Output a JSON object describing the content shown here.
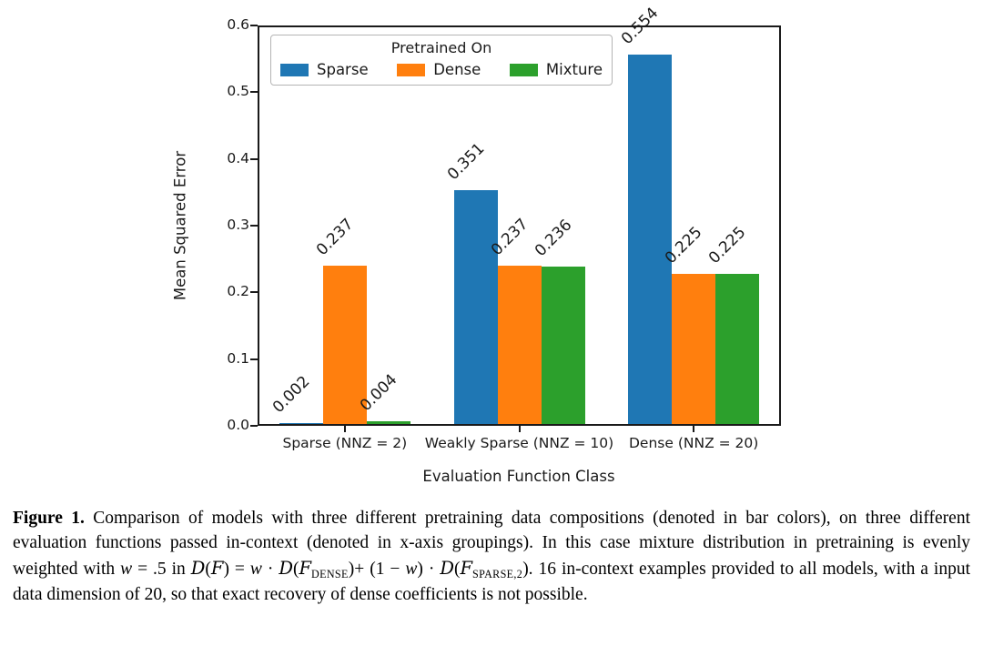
{
  "chart_data": {
    "type": "bar",
    "title": "",
    "xlabel": "Evaluation Function Class",
    "ylabel": "Mean Squared Error",
    "ylim": [
      0,
      0.6
    ],
    "yticks": [
      0.0,
      0.1,
      0.2,
      0.3,
      0.4,
      0.5,
      0.6
    ],
    "grid": false,
    "legend_title": "Pretrained On",
    "legend_position": "upper left",
    "bar_value_label_rotation_deg": 45,
    "categories": [
      "Sparse (NNZ = 2)",
      "Weakly Sparse (NNZ = 10)",
      "Dense (NNZ = 20)"
    ],
    "series": [
      {
        "name": "Sparse",
        "color": "#1f77b4",
        "values": [
          0.002,
          0.351,
          0.554
        ],
        "labels": [
          "0.002",
          "0.351",
          "0.554"
        ]
      },
      {
        "name": "Dense",
        "color": "#ff7f0e",
        "values": [
          0.237,
          0.237,
          0.225
        ],
        "labels": [
          "0.237",
          "0.237",
          "0.225"
        ]
      },
      {
        "name": "Mixture",
        "color": "#2ca02c",
        "values": [
          0.004,
          0.236,
          0.225
        ],
        "labels": [
          "0.004",
          "0.236",
          "0.225"
        ]
      }
    ]
  },
  "caption": {
    "segments": [
      {
        "text": "Figure 1.",
        "style": "bold"
      },
      {
        "text": " Comparison of models with three different pretraining data compositions (denoted in bar colors), on three different evaluation functions passed in-context (denoted in x-axis groupings). In this case mixture distribution in pretraining is evenly weighted with ",
        "style": "normal"
      },
      {
        "text": "w",
        "style": "italic"
      },
      {
        "text": " = .5 in ",
        "style": "normal"
      },
      {
        "text": "D",
        "style": "script"
      },
      {
        "text": "(",
        "style": "normal"
      },
      {
        "text": "F",
        "style": "script"
      },
      {
        "text": ") = ",
        "style": "normal"
      },
      {
        "text": "w",
        "style": "italic"
      },
      {
        "text": " · ",
        "style": "normal"
      },
      {
        "text": "D",
        "style": "script"
      },
      {
        "text": "(",
        "style": "normal"
      },
      {
        "text": "F",
        "style": "script"
      },
      {
        "text": "DENSE",
        "style": "subscript"
      },
      {
        "text": ")+ (1 − ",
        "style": "normal"
      },
      {
        "text": "w",
        "style": "italic"
      },
      {
        "text": ") · ",
        "style": "normal"
      },
      {
        "text": "D",
        "style": "script"
      },
      {
        "text": "(",
        "style": "normal"
      },
      {
        "text": "F",
        "style": "script"
      },
      {
        "text": "SPARSE,2",
        "style": "subscript"
      },
      {
        "text": "). 16 in-context examples provided to all models, with a input data dimension of 20, so that exact recovery of dense coefficients is not possible.",
        "style": "normal"
      }
    ]
  }
}
